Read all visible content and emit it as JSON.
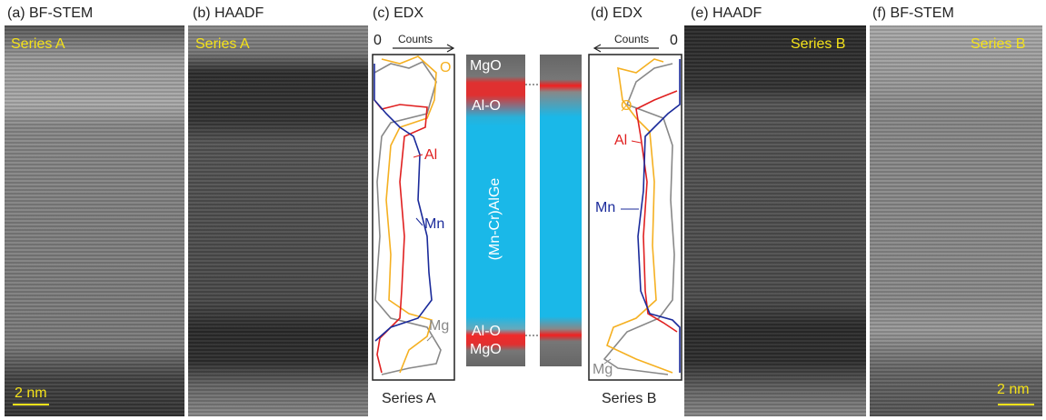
{
  "panels": [
    {
      "label": "(a) BF-STEM",
      "series": "Series A",
      "scale_bar": "2 nm"
    },
    {
      "label": "(b) HAADF",
      "series": "Series A"
    },
    {
      "label": "(c) EDX",
      "zero": "0",
      "axis": "Counts",
      "series": "Series A",
      "elements": [
        "O",
        "Al",
        "Mn",
        "Mg"
      ]
    },
    {
      "label": "(d) EDX",
      "zero": "0",
      "axis": "Counts",
      "series": "Series B",
      "elements": [
        "O",
        "Al",
        "Mn",
        "Mg"
      ]
    },
    {
      "label": "(e) HAADF",
      "series": "Series B"
    },
    {
      "label": "(f) BF-STEM",
      "series": "Series B",
      "scale_bar": "2 nm"
    }
  ],
  "layers": [
    "MgO",
    "Al-O",
    "(Mn-Cr)AlGe",
    "Al-O",
    "MgO"
  ]
}
